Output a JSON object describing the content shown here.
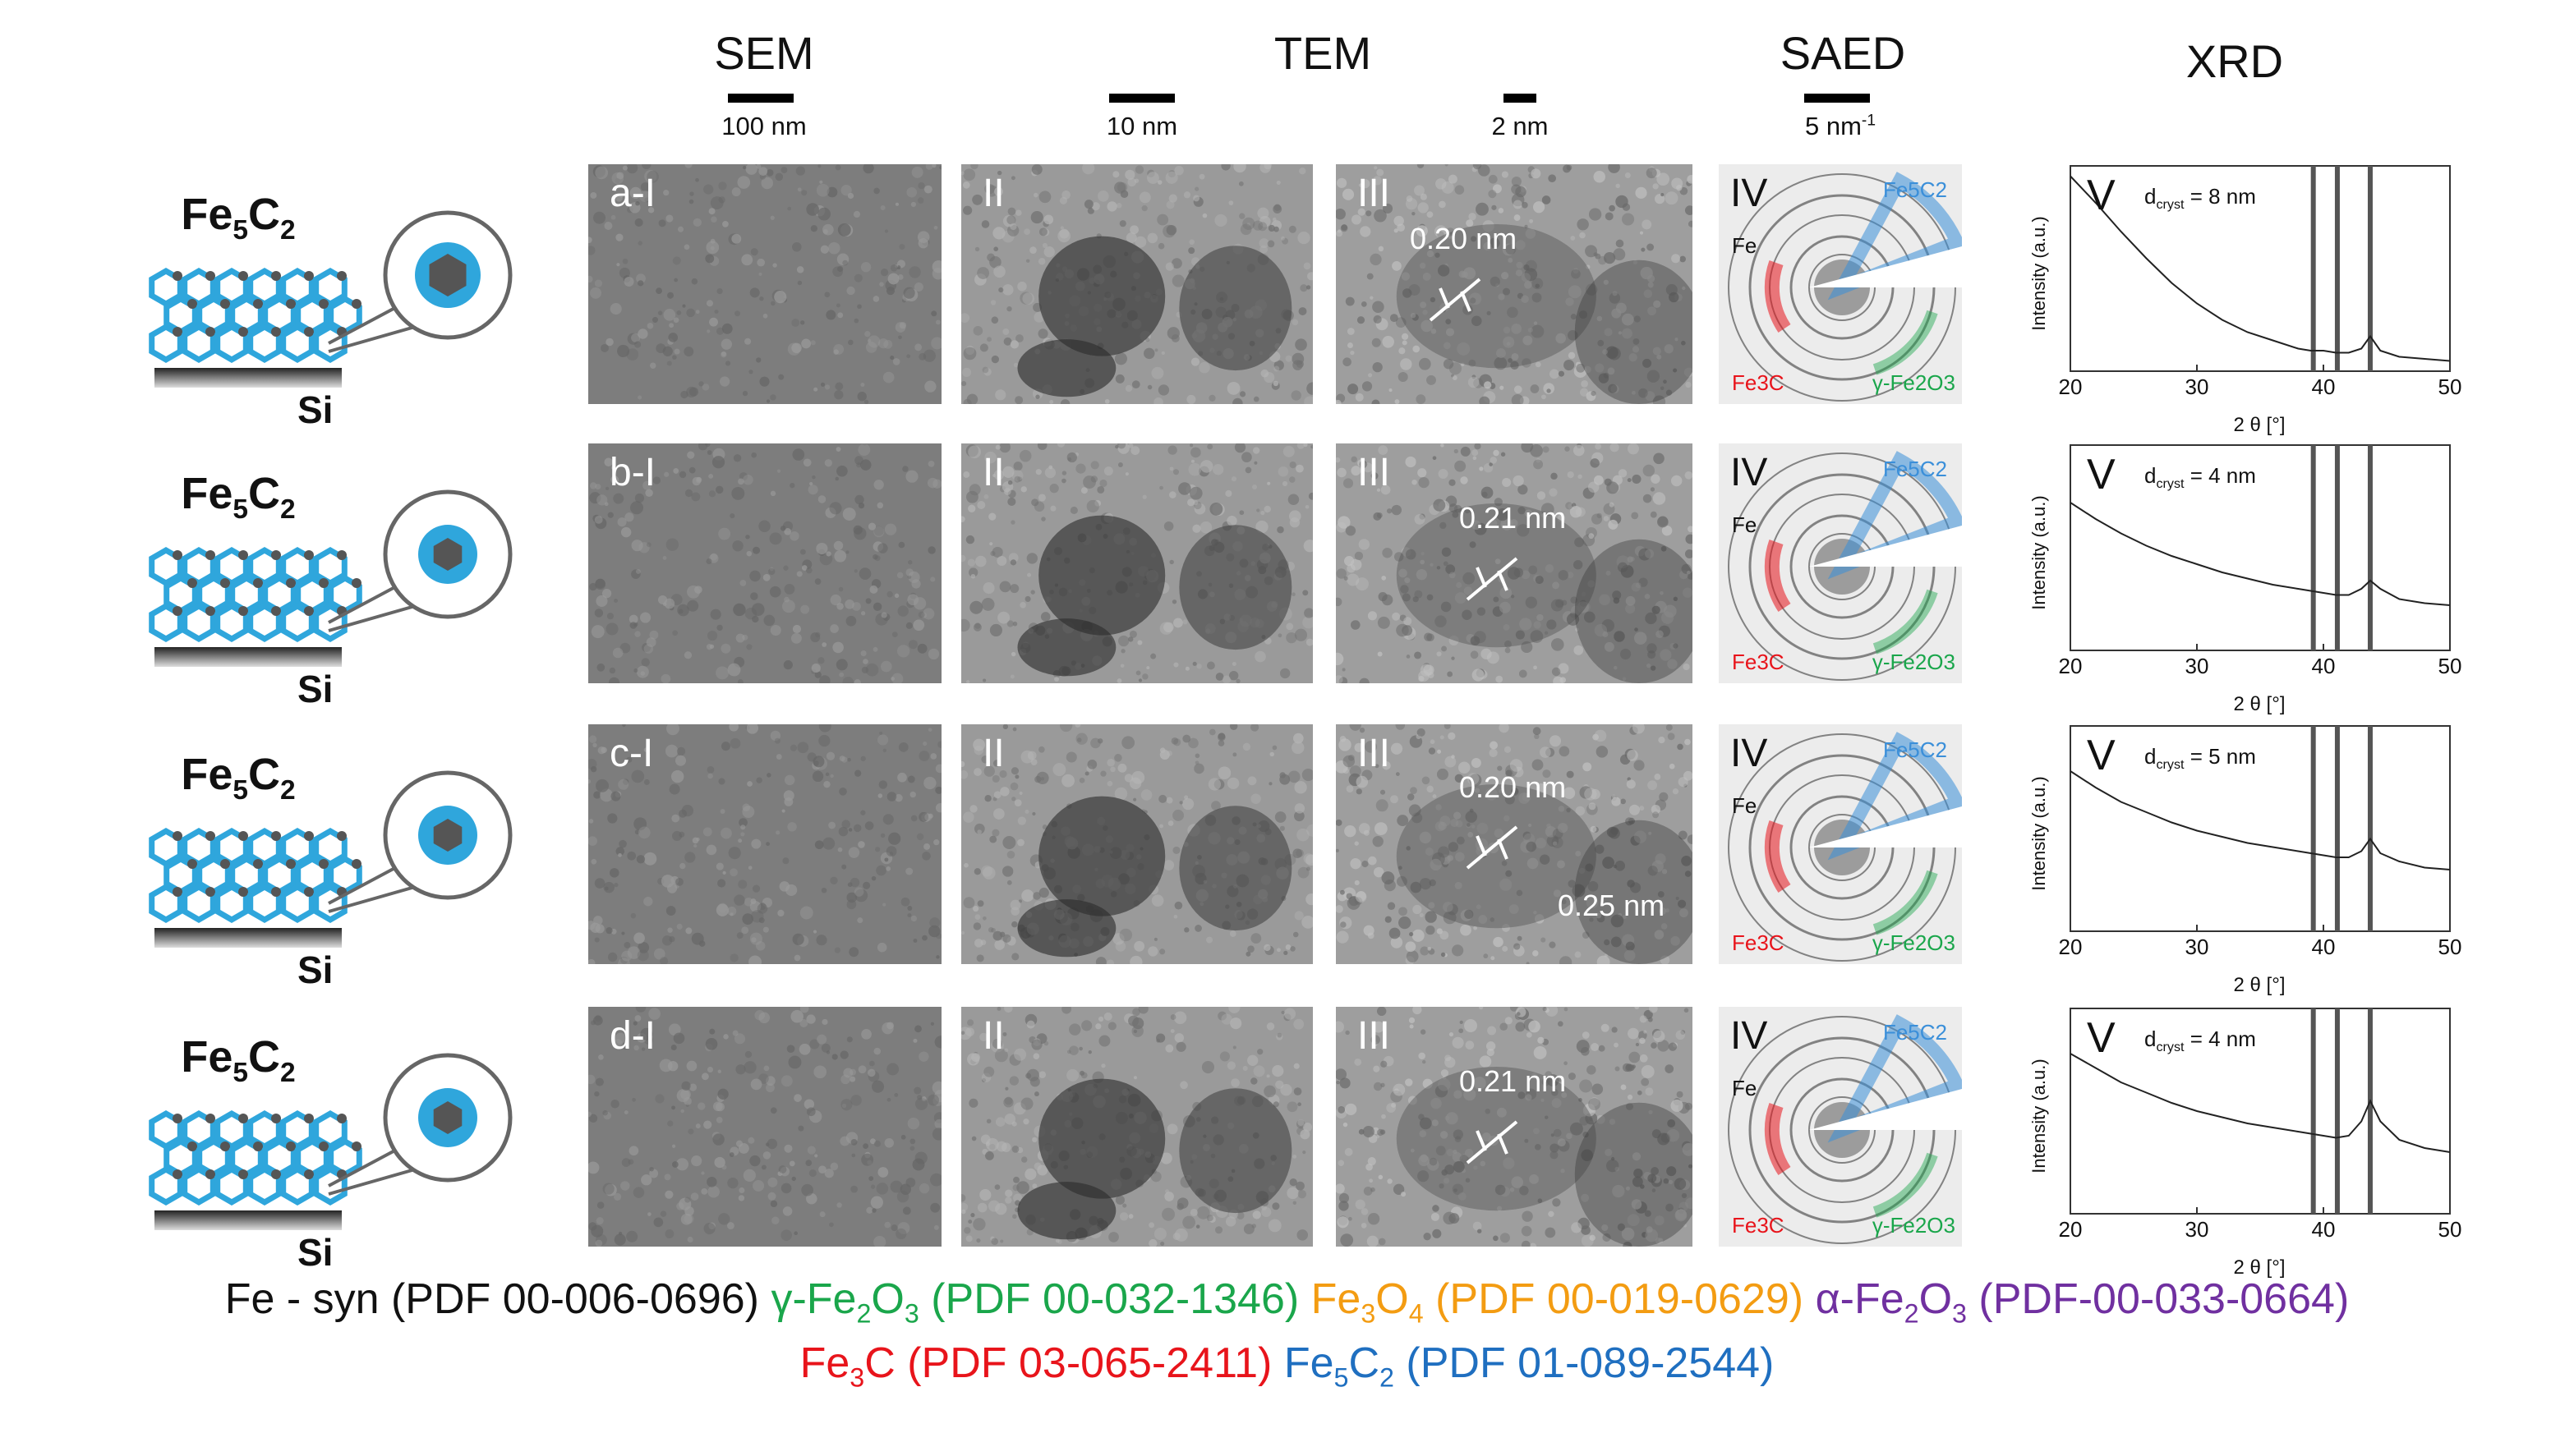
{
  "column_headers": {
    "sem": "SEM",
    "tem": "TEM",
    "saed": "SAED",
    "xrd": "XRD"
  },
  "scale_bars": {
    "sem": "100 nm",
    "tem_low": "10 nm",
    "tem_high": "2 nm",
    "saed": "5 nm",
    "saed_unit_exp": "-1"
  },
  "schematic": {
    "formula_main": "Fe",
    "formula_sub1": "5",
    "formula_mid": "C",
    "formula_sub2": "2",
    "substrate": "Si"
  },
  "rows": [
    {
      "sem_label": "a-I",
      "tem_label": "II",
      "hrtem_label": "III",
      "hrtem_d1": "0.20 nm",
      "hrtem_d2": "",
      "saed_label": "IV",
      "xrd_label": "V",
      "dcryst_value": "= 8 nm"
    },
    {
      "sem_label": "b-I",
      "tem_label": "II",
      "hrtem_label": "III",
      "hrtem_d1": "0.21 nm",
      "hrtem_d2": "",
      "saed_label": "IV",
      "xrd_label": "V",
      "dcryst_value": "= 4 nm"
    },
    {
      "sem_label": "c-I",
      "tem_label": "II",
      "hrtem_label": "III",
      "hrtem_d1": "0.20 nm",
      "hrtem_d2": "0.25 nm",
      "saed_label": "IV",
      "xrd_label": "V",
      "dcryst_value": "= 5 nm"
    },
    {
      "sem_label": "d-I",
      "tem_label": "II",
      "hrtem_label": "III",
      "hrtem_d1": "0.21 nm",
      "hrtem_d2": "",
      "saed_label": "IV",
      "xrd_label": "V",
      "dcryst_value": "= 4 nm"
    }
  ],
  "saed_phase_labels": {
    "fe5c2": "Fe5C2",
    "fe": "Fe",
    "fe3c": "Fe3C",
    "gfe2o3": "γ-Fe2O3"
  },
  "xrd": {
    "ylabel": "Intensity (a.u.)",
    "xlabel": "2 θ [°]",
    "dcryst_prefix": "d",
    "dcryst_sub": "cryst",
    "xticks": [
      "20",
      "30",
      "40",
      "50"
    ]
  },
  "chart_data": [
    {
      "type": "line",
      "title": "",
      "xlabel": "2 θ [°]",
      "ylabel": "Intensity (a.u.)",
      "xlim": [
        20,
        50
      ],
      "x": [
        20,
        22,
        24,
        26,
        28,
        30,
        32,
        34,
        36,
        38,
        39,
        40,
        41,
        42,
        43,
        43.7,
        44.5,
        46,
        48,
        50
      ],
      "series": [
        {
          "values": [
            0.95,
            0.82,
            0.68,
            0.55,
            0.43,
            0.33,
            0.25,
            0.19,
            0.15,
            0.11,
            0.1,
            0.1,
            0.09,
            0.09,
            0.11,
            0.17,
            0.1,
            0.07,
            0.06,
            0.05
          ]
        }
      ],
      "reference_lines_x": [
        39.2,
        41.1,
        43.7
      ],
      "annotation": "dcryst = 8 nm"
    },
    {
      "type": "line",
      "title": "",
      "xlabel": "2 θ [°]",
      "ylabel": "Intensity (a.u.)",
      "xlim": [
        20,
        50
      ],
      "x": [
        20,
        22,
        24,
        26,
        28,
        30,
        32,
        34,
        36,
        38,
        39,
        40,
        41,
        42,
        43,
        43.7,
        44.5,
        46,
        48,
        50
      ],
      "series": [
        {
          "values": [
            0.72,
            0.64,
            0.57,
            0.51,
            0.46,
            0.42,
            0.38,
            0.35,
            0.32,
            0.3,
            0.29,
            0.28,
            0.27,
            0.27,
            0.3,
            0.34,
            0.3,
            0.25,
            0.23,
            0.22
          ]
        }
      ],
      "reference_lines_x": [
        39.2,
        41.1,
        43.7
      ],
      "annotation": "dcryst = 4 nm"
    },
    {
      "type": "line",
      "title": "",
      "xlabel": "2 θ [°]",
      "ylabel": "Intensity (a.u.)",
      "xlim": [
        20,
        50
      ],
      "x": [
        20,
        22,
        24,
        26,
        28,
        30,
        32,
        34,
        36,
        38,
        39,
        40,
        41,
        42,
        43,
        43.7,
        44.5,
        46,
        48,
        50
      ],
      "series": [
        {
          "values": [
            0.78,
            0.7,
            0.63,
            0.58,
            0.53,
            0.49,
            0.46,
            0.43,
            0.41,
            0.39,
            0.38,
            0.37,
            0.36,
            0.36,
            0.39,
            0.45,
            0.38,
            0.34,
            0.31,
            0.3
          ]
        }
      ],
      "reference_lines_x": [
        39.2,
        41.1,
        43.7
      ],
      "annotation": "dcryst = 5 nm"
    },
    {
      "type": "line",
      "title": "",
      "xlabel": "2 θ [°]",
      "ylabel": "Intensity (a.u.)",
      "xlim": [
        20,
        50
      ],
      "x": [
        20,
        22,
        24,
        26,
        28,
        30,
        32,
        34,
        36,
        38,
        39,
        40,
        41,
        42,
        43,
        43.7,
        44.5,
        46,
        48,
        50
      ],
      "series": [
        {
          "values": [
            0.78,
            0.71,
            0.64,
            0.59,
            0.54,
            0.5,
            0.47,
            0.44,
            0.42,
            0.4,
            0.39,
            0.38,
            0.37,
            0.38,
            0.45,
            0.55,
            0.45,
            0.36,
            0.32,
            0.3
          ]
        }
      ],
      "reference_lines_x": [
        39.2,
        41.1,
        43.7
      ],
      "annotation": "dcryst = 4 nm"
    }
  ],
  "legend": {
    "line1": [
      {
        "text": "Fe - syn (PDF 00-006-0696)",
        "color": "#111111"
      },
      {
        "text": "γ-Fe2O3 (PDF 00-032-1346)",
        "color": "#1aa64b"
      },
      {
        "text": "Fe3O4 (PDF 00-019-0629)",
        "color": "#f39c12"
      },
      {
        "text": "α-Fe2O3 (PDF-00-033-0664)",
        "color": "#7030a0"
      }
    ],
    "line2": [
      {
        "text": "Fe3C (PDF 03-065-2411)",
        "color": "#e8141b"
      },
      {
        "text": "Fe5C2 (PDF 01-089-2544)",
        "color": "#1f6fc0"
      }
    ]
  },
  "colors": {
    "shell": "#2fa6dc",
    "core": "#555555",
    "fe5c2": "#3b8fd9",
    "fe3c": "#e8141b",
    "gfe2o3": "#1aa64b"
  }
}
